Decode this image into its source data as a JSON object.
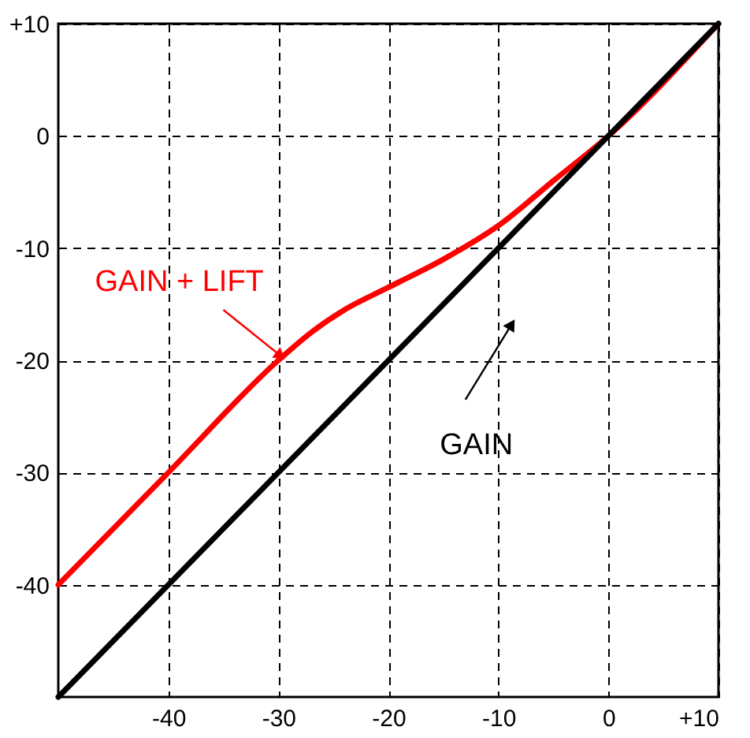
{
  "chart_data": {
    "type": "line",
    "series": [
      {
        "name": "GAIN + LIFT",
        "color": "#ff0000",
        "x": [
          -50,
          -40,
          -30,
          -27,
          -24,
          -20,
          -15,
          -10,
          -5,
          0,
          10
        ],
        "values": [
          -40,
          -30,
          -20,
          -17.5,
          -15.5,
          -13.5,
          -11,
          -8,
          -4,
          0,
          10
        ]
      },
      {
        "name": "GAIN",
        "color": "#000000",
        "x": [
          -50,
          10
        ],
        "values": [
          -50,
          10
        ]
      }
    ],
    "xlim": [
      -50,
      10
    ],
    "ylim": [
      -50,
      10
    ],
    "xticks": [
      -40,
      -30,
      -20,
      -10,
      0,
      {
        "value": 10,
        "label": "+10"
      }
    ],
    "yticks": [
      {
        "value": 10,
        "label": "+10"
      },
      0,
      -10,
      -20,
      -30,
      -40
    ],
    "grid": true,
    "marker": "none",
    "line_style": "solid"
  }
}
